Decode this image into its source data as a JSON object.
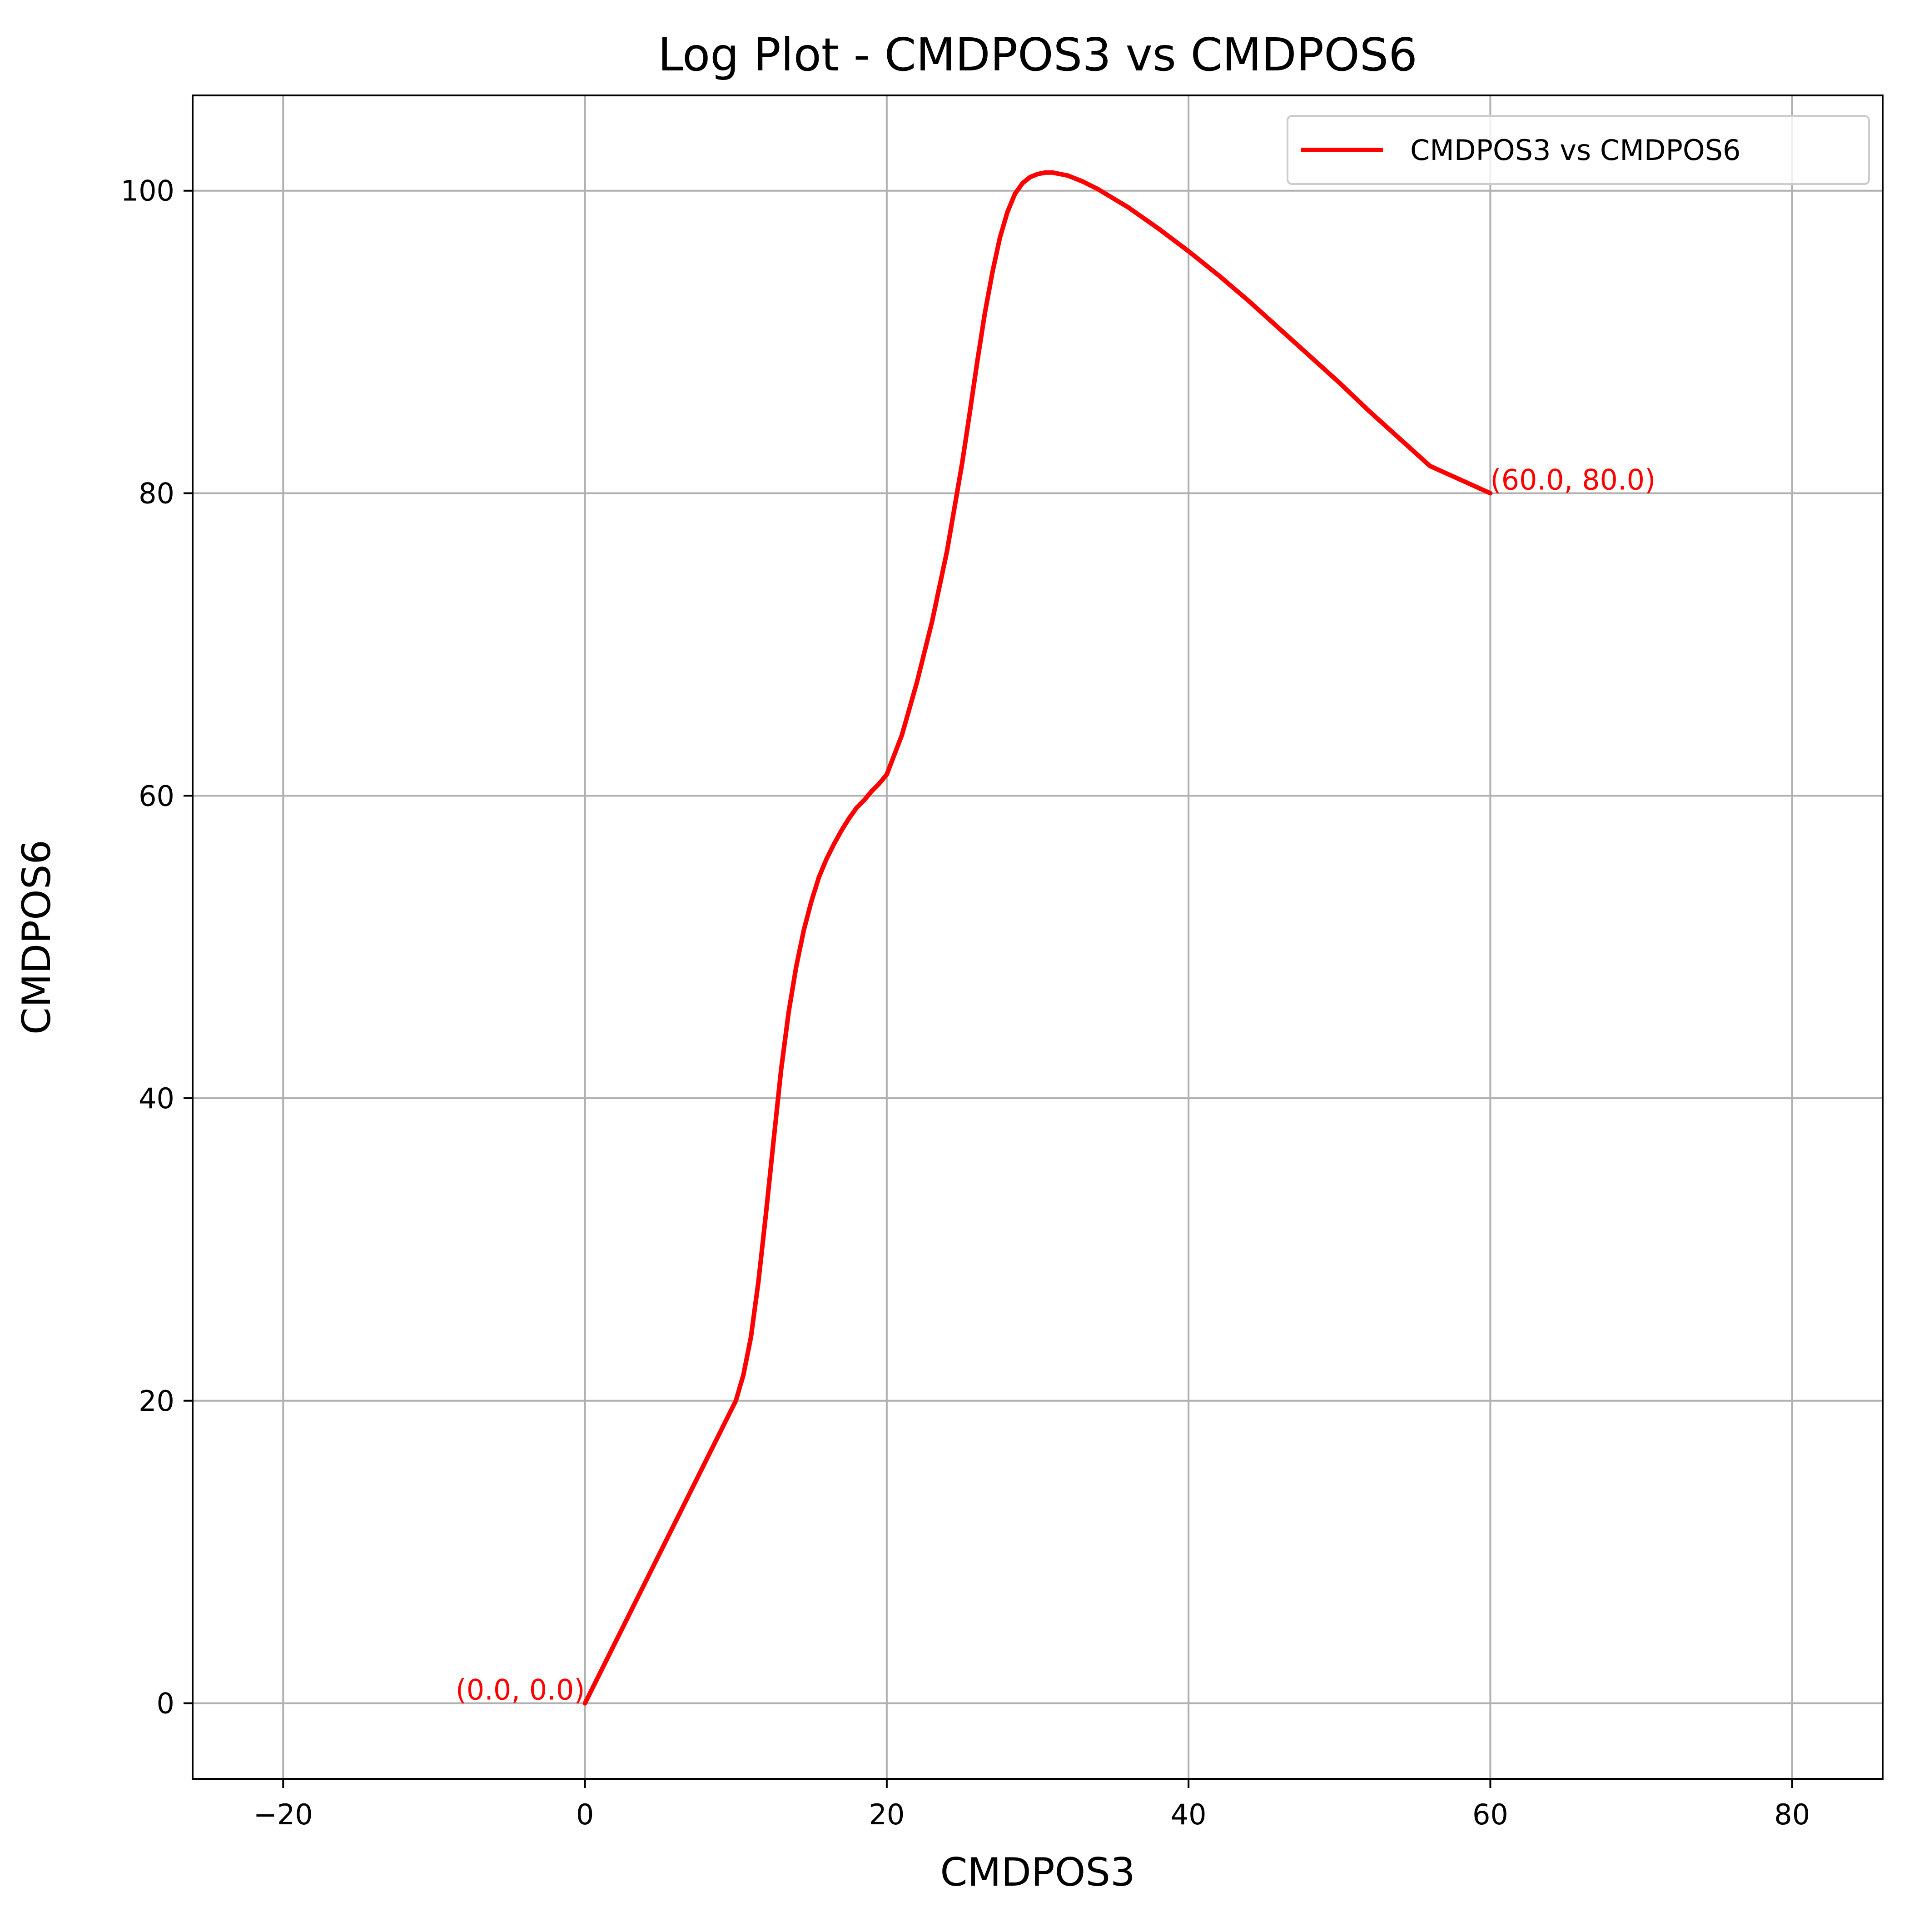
{
  "chart_data": {
    "type": "line",
    "title": "Log Plot - CMDPOS3 vs CMDPOS6",
    "xlabel": "CMDPOS3",
    "ylabel": "CMDPOS6",
    "xlim": [
      -26,
      86
    ],
    "ylim": [
      -5,
      106.3
    ],
    "x_ticks": [
      -20,
      0,
      20,
      40,
      60,
      80
    ],
    "x_tick_labels": [
      "−20",
      "0",
      "20",
      "40",
      "60",
      "80"
    ],
    "y_ticks": [
      0,
      20,
      40,
      60,
      80,
      100
    ],
    "y_tick_labels": [
      "0",
      "20",
      "40",
      "60",
      "80",
      "100"
    ],
    "grid": true,
    "legend_position": "top-right",
    "series": [
      {
        "name": "CMDPOS3 vs CMDPOS6",
        "color": "#ff0000",
        "x": [
          0,
          2,
          4,
          6,
          8,
          10,
          10.5,
          11,
          11.5,
          12,
          12.5,
          13,
          13.5,
          14,
          14.5,
          15,
          15.5,
          16,
          16.5,
          17,
          17.5,
          18,
          18.5,
          19,
          19.5,
          20,
          21,
          22,
          23,
          24,
          25,
          25.5,
          26,
          26.5,
          27,
          27.5,
          28,
          28.5,
          29,
          29.5,
          30,
          30.5,
          31,
          31.5,
          32,
          33,
          34,
          35,
          36,
          38,
          40,
          42,
          44,
          46,
          48,
          50,
          52,
          54,
          56,
          58,
          60
        ],
        "y": [
          0,
          4,
          8,
          12,
          16,
          20,
          21.7,
          24.2,
          27.9,
          32.4,
          37.2,
          41.9,
          45.7,
          48.7,
          51.1,
          53.0,
          54.6,
          55.8,
          56.8,
          57.7,
          58.5,
          59.2,
          59.7,
          60.3,
          60.8,
          61.4,
          64.0,
          67.5,
          71.5,
          76.2,
          82.0,
          85.3,
          88.7,
          91.9,
          94.6,
          96.9,
          98.6,
          99.8,
          100.5,
          100.9,
          101.1,
          101.2,
          101.2,
          101.1,
          101.0,
          100.6,
          100.1,
          99.5,
          98.9,
          97.5,
          96.0,
          94.4,
          92.7,
          90.9,
          89.1,
          87.3,
          85.4,
          83.6,
          81.8,
          80.9,
          80
        ]
      }
    ],
    "annotations": [
      {
        "text": "(0.0, 0.0)",
        "x": 0,
        "y": 0,
        "anchor": "end",
        "color": "#ff0000"
      },
      {
        "text": "(60.0, 80.0)",
        "x": 60,
        "y": 80,
        "anchor": "start",
        "color": "#ff0000"
      }
    ]
  }
}
